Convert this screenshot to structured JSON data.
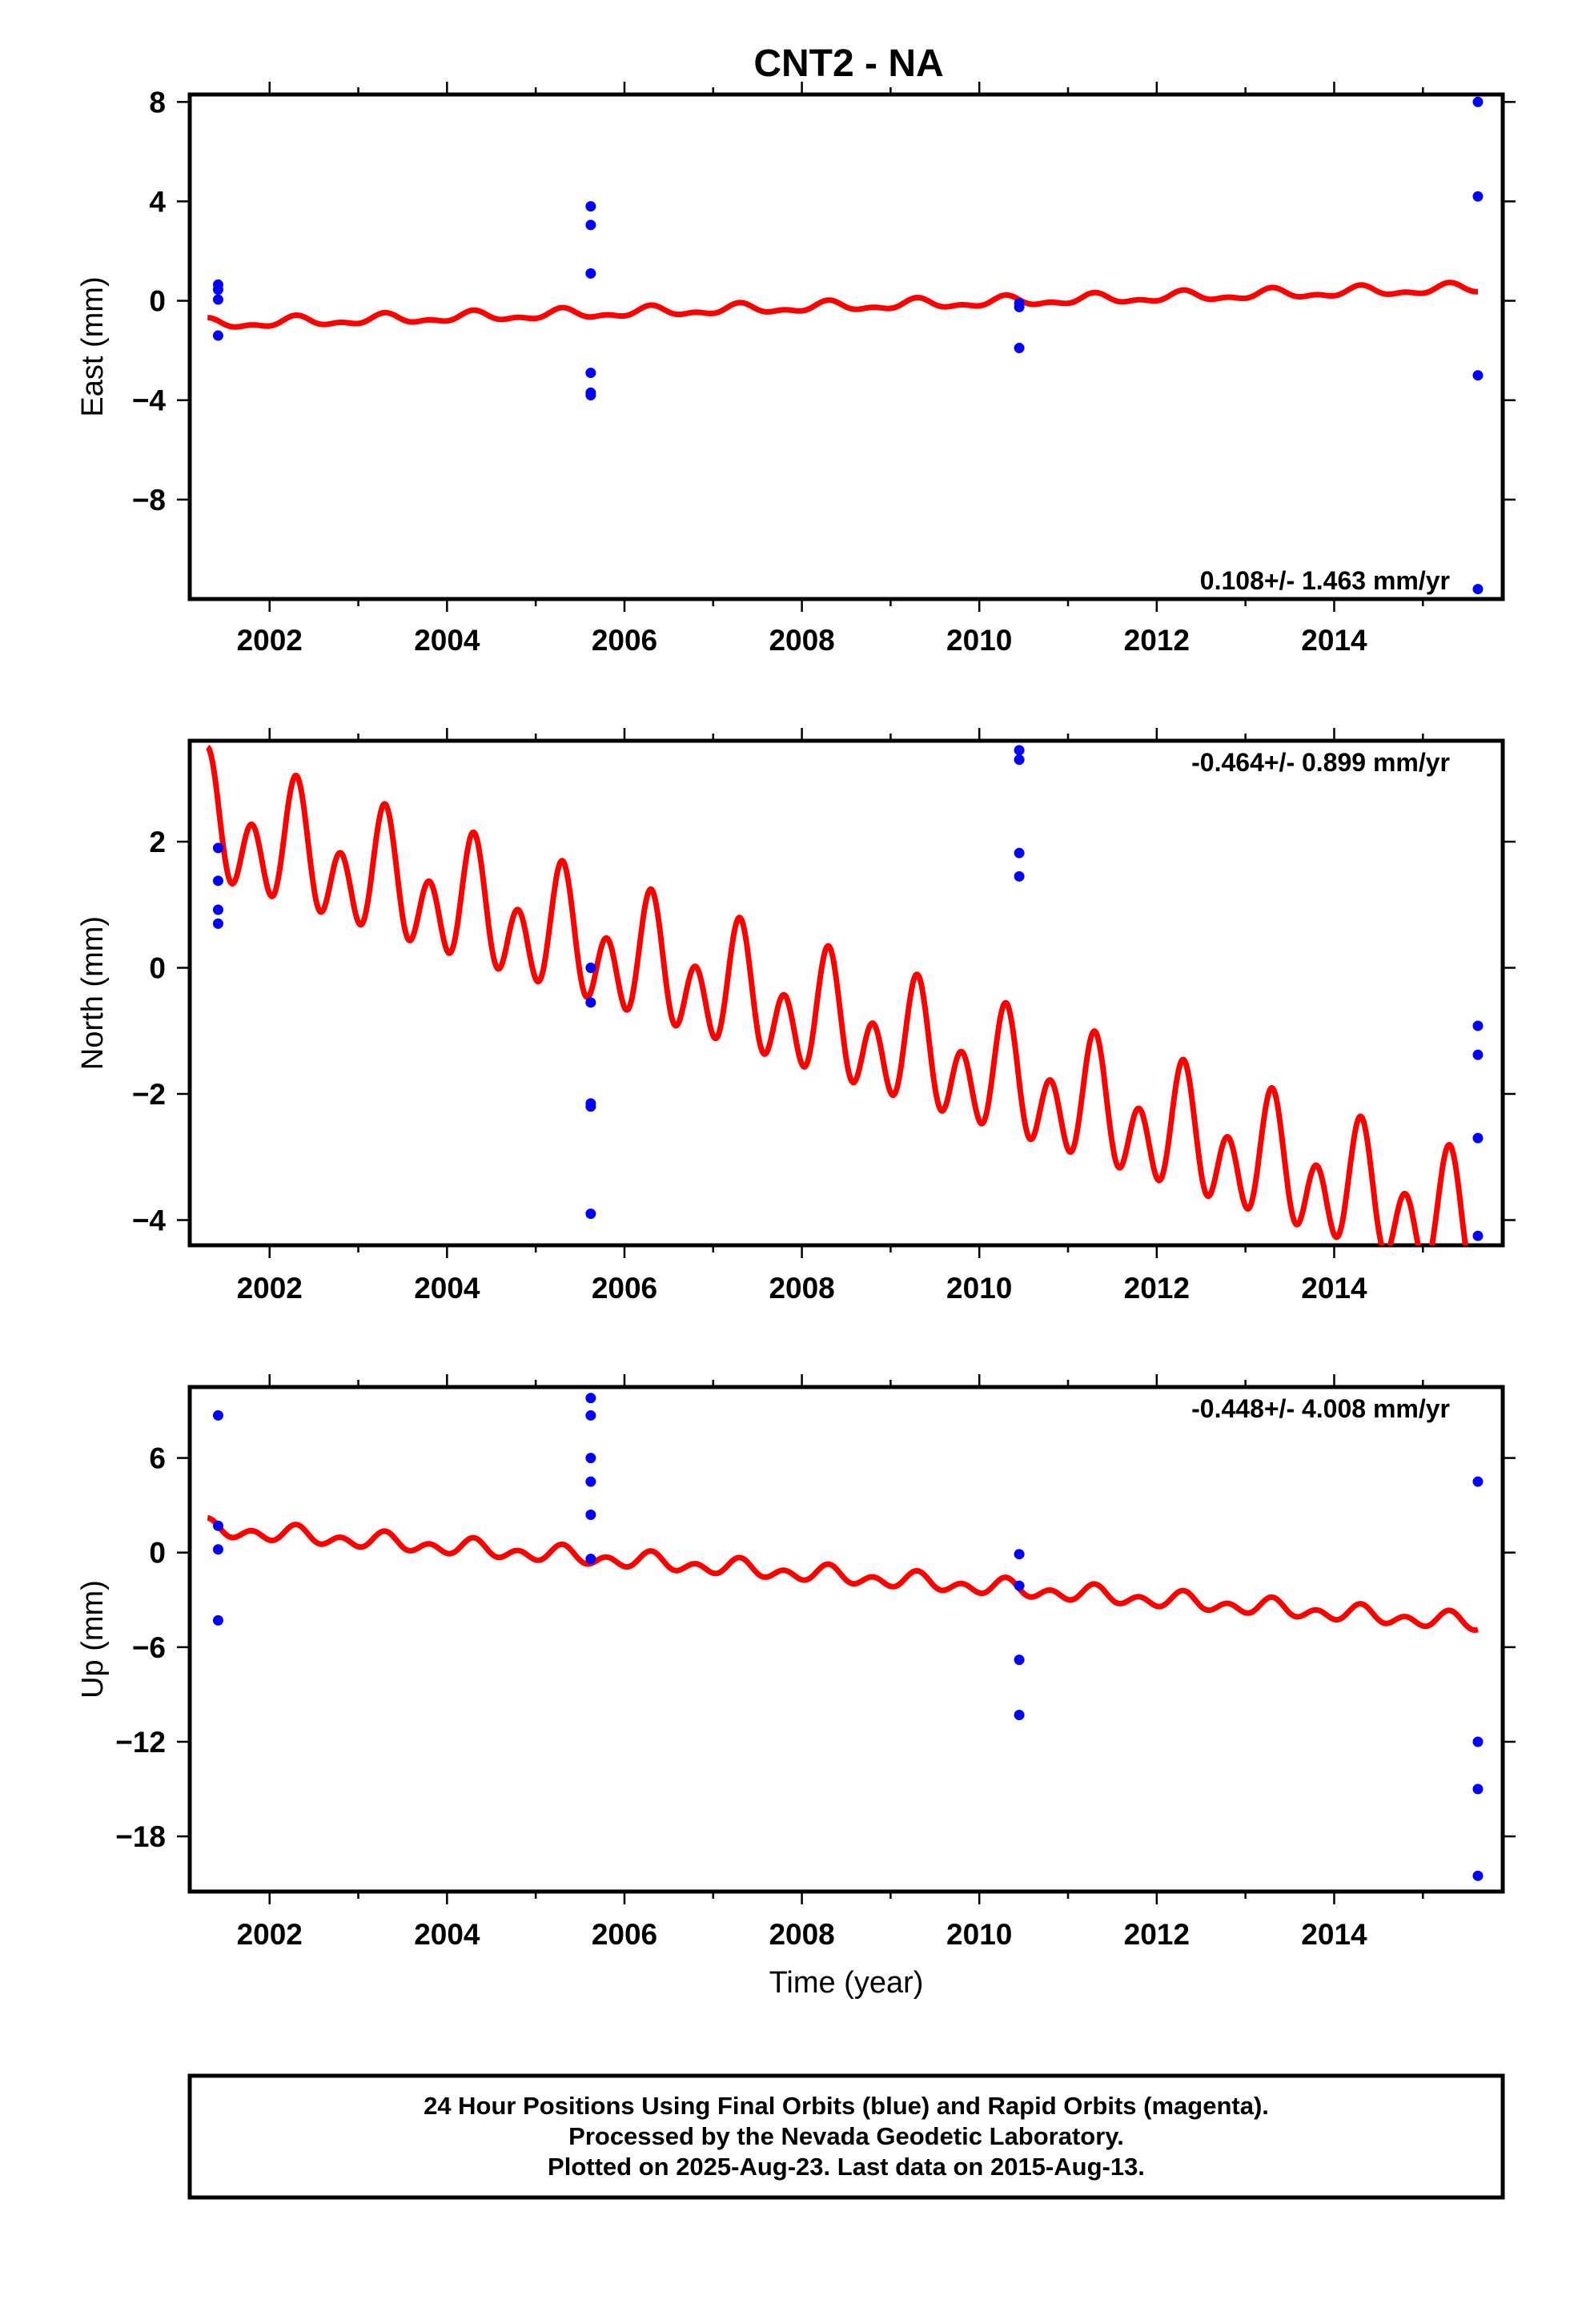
{
  "title": "CNT2 - NA",
  "colors": {
    "fit": "#ff0000",
    "final_orbits": "#0000ff",
    "frame": "#000000"
  },
  "footer": {
    "line1": "24 Hour Positions Using Final Orbits (blue) and Rapid Orbits (magenta).",
    "line2": "Processed by the Nevada Geodetic Laboratory.",
    "line3": "Plotted on 2025-Aug-23. Last data on 2015-Aug-13."
  },
  "chart_data": [
    {
      "type": "scatter",
      "ylabel": "East (mm)",
      "xlabel": "",
      "rate_label": "0.108+/- 1.463 mm/yr",
      "xlim": [
        2001.1,
        2015.9
      ],
      "ylim": [
        -12,
        8.3
      ],
      "x_ticks": [
        2002,
        2004,
        2006,
        2008,
        2010,
        2012,
        2014
      ],
      "x_tick_labels": [
        "2002",
        "2004",
        "2006",
        "2008",
        "2010",
        "2012",
        "2014"
      ],
      "y_ticks": [
        8,
        4,
        0,
        -4,
        -8
      ],
      "y_tick_labels": [
        "8",
        "4",
        "0",
        "−4",
        "−8"
      ],
      "points": [
        {
          "x": 2001.42,
          "y": 0.65
        },
        {
          "x": 2001.42,
          "y": 0.45
        },
        {
          "x": 2001.42,
          "y": 0.05
        },
        {
          "x": 2001.42,
          "y": -1.4
        },
        {
          "x": 2005.62,
          "y": 3.8
        },
        {
          "x": 2005.62,
          "y": 3.05
        },
        {
          "x": 2005.62,
          "y": 1.1
        },
        {
          "x": 2005.62,
          "y": -2.9
        },
        {
          "x": 2005.62,
          "y": -3.7
        },
        {
          "x": 2005.62,
          "y": -3.8
        },
        {
          "x": 2010.45,
          "y": -0.1
        },
        {
          "x": 2010.45,
          "y": -0.25
        },
        {
          "x": 2010.45,
          "y": -1.9
        },
        {
          "x": 2015.62,
          "y": 8.0
        },
        {
          "x": 2015.62,
          "y": 4.2
        },
        {
          "x": 2015.62,
          "y": -3.0
        },
        {
          "x": 2015.62,
          "y": -11.6
        }
      ],
      "fit": {
        "x_start": 2001.3,
        "x_end": 2015.62,
        "trend_start": -0.95,
        "trend_end": 0.5,
        "annual_amp": 0.17,
        "semiannual_amp": 0.1
      }
    },
    {
      "type": "scatter",
      "ylabel": "North (mm)",
      "xlabel": "",
      "rate_label": "-0.464+/- 0.899 mm/yr",
      "xlim": [
        2001.1,
        2015.9
      ],
      "ylim": [
        -4.4,
        3.6
      ],
      "x_ticks": [
        2002,
        2004,
        2006,
        2008,
        2010,
        2012,
        2014
      ],
      "x_tick_labels": [
        "2002",
        "2004",
        "2006",
        "2008",
        "2010",
        "2012",
        "2014"
      ],
      "y_ticks": [
        2,
        0,
        -2,
        -4
      ],
      "y_tick_labels": [
        "2",
        "0",
        "−2",
        "−4"
      ],
      "points": [
        {
          "x": 2001.42,
          "y": 1.9
        },
        {
          "x": 2001.42,
          "y": 1.38
        },
        {
          "x": 2001.42,
          "y": 0.92
        },
        {
          "x": 2001.42,
          "y": 0.7
        },
        {
          "x": 2005.62,
          "y": 0.0
        },
        {
          "x": 2005.62,
          "y": -0.55
        },
        {
          "x": 2005.62,
          "y": -2.15
        },
        {
          "x": 2005.62,
          "y": -2.2
        },
        {
          "x": 2005.62,
          "y": -3.9
        },
        {
          "x": 2010.45,
          "y": 3.45
        },
        {
          "x": 2010.45,
          "y": 3.3
        },
        {
          "x": 2010.45,
          "y": 1.82
        },
        {
          "x": 2010.45,
          "y": 1.45
        },
        {
          "x": 2015.62,
          "y": -0.92
        },
        {
          "x": 2015.62,
          "y": -1.38
        },
        {
          "x": 2015.62,
          "y": -2.7
        },
        {
          "x": 2015.62,
          "y": -4.25
        }
      ],
      "fit": {
        "x_start": 2001.3,
        "x_end": 2015.62,
        "trend_start": 2.25,
        "trend_end": -4.2,
        "annual_amp": 0.5,
        "semiannual_amp": 0.75
      }
    },
    {
      "type": "scatter",
      "ylabel": "Up (mm)",
      "xlabel": "Time (year)",
      "rate_label": "-0.448+/- 4.008 mm/yr",
      "xlim": [
        2001.1,
        2015.9
      ],
      "ylim": [
        -21.5,
        10.5
      ],
      "x_ticks": [
        2002,
        2004,
        2006,
        2008,
        2010,
        2012,
        2014
      ],
      "x_tick_labels": [
        "2002",
        "2004",
        "2006",
        "2008",
        "2010",
        "2012",
        "2014"
      ],
      "y_ticks": [
        6,
        0,
        -6,
        -12,
        -18
      ],
      "y_tick_labels": [
        "6",
        "0",
        "−6",
        "−12",
        "−18"
      ],
      "points": [
        {
          "x": 2001.42,
          "y": 8.7
        },
        {
          "x": 2001.42,
          "y": 1.7
        },
        {
          "x": 2001.42,
          "y": 0.2
        },
        {
          "x": 2001.42,
          "y": -4.3
        },
        {
          "x": 2005.62,
          "y": 9.8
        },
        {
          "x": 2005.62,
          "y": 8.7
        },
        {
          "x": 2005.62,
          "y": 6.0
        },
        {
          "x": 2005.62,
          "y": 4.5
        },
        {
          "x": 2005.62,
          "y": 2.4
        },
        {
          "x": 2005.62,
          "y": -0.4
        },
        {
          "x": 2010.45,
          "y": -0.1
        },
        {
          "x": 2010.45,
          "y": -2.1
        },
        {
          "x": 2010.45,
          "y": -6.8
        },
        {
          "x": 2010.45,
          "y": -10.3
        },
        {
          "x": 2015.62,
          "y": 4.5
        },
        {
          "x": 2015.62,
          "y": -12.0
        },
        {
          "x": 2015.62,
          "y": -15.0
        },
        {
          "x": 2015.62,
          "y": -20.5
        }
      ],
      "fit": {
        "x_start": 2001.3,
        "x_end": 2015.62,
        "trend_start": 1.5,
        "trend_end": -4.5,
        "annual_amp": 0.3,
        "semiannual_amp": 0.4
      }
    }
  ]
}
